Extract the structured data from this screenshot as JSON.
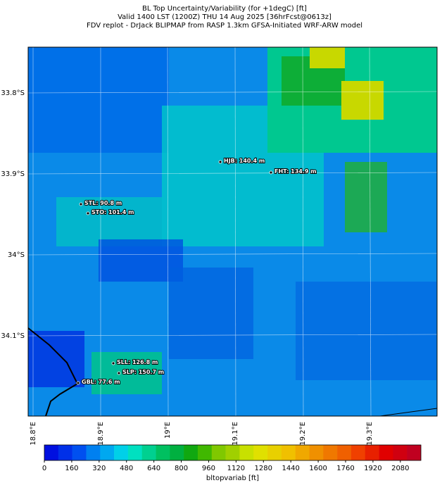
{
  "header": {
    "lines": [
      "BL Top Uncertainty/Variability (for +1degC) [ft]",
      "Valid 1400 LST (1200Z) THU 14 Aug 2025 [36hrFcst@0613z]",
      "FDV replot - DrJack BLIPMAP from RASP 1.3km GFSA-Initiated WRF-ARW model"
    ]
  },
  "map": {
    "lat_labels": [
      "33.8°S",
      "33.9°S",
      "34°S",
      "34.1°S"
    ],
    "lon_labels": [
      "18.8°E",
      "18.9°E",
      "19°E",
      "19.1°E",
      "19.2°E",
      "19.3°E"
    ],
    "stations": [
      {
        "label": "HJB: 140.4 m"
      },
      {
        "label": "FHT: 134.9 m"
      },
      {
        "label": "STL: 90.8 m"
      },
      {
        "label": "STO: 101.4 m"
      },
      {
        "label": "SLL: 126.8 m"
      },
      {
        "label": "SLP: 150.7 m"
      },
      {
        "label": "GBL: 77.6 m"
      }
    ]
  },
  "colorbar": {
    "label": "bltopvariab [ft]",
    "lim": [
      0,
      2200
    ],
    "ticks": [
      0,
      160,
      320,
      480,
      640,
      800,
      960,
      1120,
      1280,
      1440,
      1600,
      1760,
      1920,
      2080
    ],
    "colors": [
      "#0010e0",
      "#0030e8",
      "#0050f0",
      "#0080f0",
      "#00a8f0",
      "#00d0e8",
      "#00e0c0",
      "#00d090",
      "#00c060",
      "#00b040",
      "#10a810",
      "#40b800",
      "#80c800",
      "#a0d000",
      "#c8e000",
      "#e0e000",
      "#e8d000",
      "#f0c000",
      "#f0a800",
      "#f09000",
      "#f07800",
      "#f06000",
      "#f04000",
      "#e82000",
      "#e00000",
      "#d00010",
      "#c00020"
    ]
  }
}
